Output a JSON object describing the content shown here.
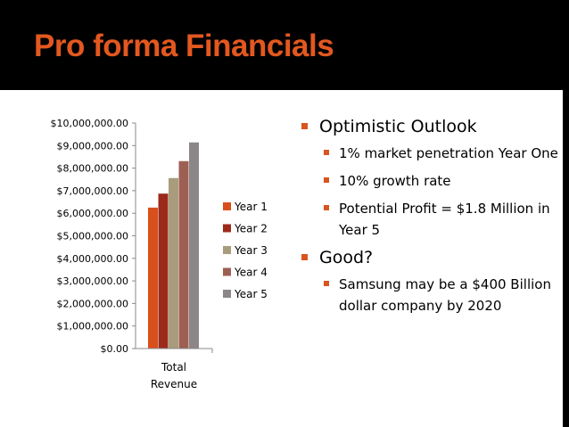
{
  "slide": {
    "title": "Pro forma Financials",
    "bullets": [
      {
        "text": "Optimistic Outlook",
        "sub": [
          "1% market penetration Year One",
          "10% growth rate",
          "Potential Profit = $1.8 Million in Year 5"
        ]
      },
      {
        "text": "Good?",
        "sub": [
          "Samsung may be a $400 Billion dollar company by 2020"
        ]
      }
    ]
  },
  "colors": {
    "title": "#e3581f",
    "bullet_marker": "#d9541e"
  },
  "chart_data": {
    "type": "bar",
    "categories": [
      "Total Revenue"
    ],
    "category_label_lines": [
      "Total",
      "Revenue"
    ],
    "series": [
      {
        "name": "Year 1",
        "values": [
          6250000
        ],
        "color": "#d94f1c"
      },
      {
        "name": "Year 2",
        "values": [
          6870000
        ],
        "color": "#9c2a1a"
      },
      {
        "name": "Year 3",
        "values": [
          7560000
        ],
        "color": "#a89c7c"
      },
      {
        "name": "Year 4",
        "values": [
          8310000
        ],
        "color": "#9e5f53"
      },
      {
        "name": "Year 5",
        "values": [
          9140000
        ],
        "color": "#8c8687"
      }
    ],
    "ylim": [
      0,
      10000000
    ],
    "yticks": [
      "$0.00",
      "$1,000,000.00",
      "$2,000,000.00",
      "$3,000,000.00",
      "$4,000,000.00",
      "$5,000,000.00",
      "$6,000,000.00",
      "$7,000,000.00",
      "$8,000,000.00",
      "$9,000,000.00",
      "$10,000,000.00"
    ],
    "legend_position": "right",
    "grid": false
  }
}
